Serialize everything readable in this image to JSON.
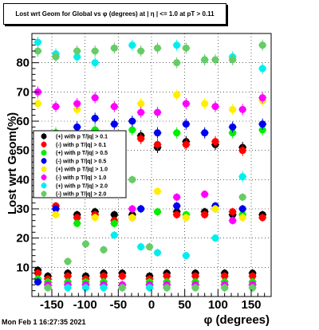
{
  "timestamp": "Mon Feb  1 16:27:35 2021",
  "chart_data": {
    "type": "scatter",
    "title": "Lost wrt Geom for Global vs φ (degrees) at | η | <= 1.0 at pT > 0.11",
    "xlabel": "φ (degrees)",
    "ylabel": "Lost wrt Geom(%)",
    "xlim": [
      -180,
      180
    ],
    "ylim": [
      0,
      90
    ],
    "xticks": [
      -150,
      -100,
      -50,
      0,
      50,
      100,
      150
    ],
    "yticks": [
      10,
      20,
      30,
      40,
      50,
      60,
      70,
      80
    ],
    "grid": true,
    "legend_position": "center-left",
    "series": [
      {
        "name": "(+) with p T/|q| > 0.1",
        "color": "#000000",
        "x": [
          -171,
          -156,
          -144,
          -126,
          -112,
          -99,
          -85,
          -72,
          -56,
          -44,
          -29,
          -16,
          -3,
          9,
          23,
          38,
          52,
          66,
          80,
          96,
          110,
          122,
          137,
          152,
          167
        ],
        "y": [
          9,
          7,
          52,
          8,
          28,
          7,
          29,
          8,
          28,
          8,
          28,
          55,
          7,
          51,
          8,
          29,
          53,
          8,
          29,
          52,
          8,
          28,
          51,
          8,
          28
        ]
      },
      {
        "name": "(-) with p T/|q| > 0.1",
        "color": "#ff0000",
        "x": [
          -171,
          -156,
          -144,
          -126,
          -112,
          -99,
          -85,
          -72,
          -56,
          -44,
          -29,
          -16,
          -3,
          9,
          23,
          38,
          52,
          66,
          80,
          96,
          110,
          122,
          137,
          152,
          167
        ],
        "y": [
          8,
          6,
          31,
          7,
          27,
          6,
          28,
          7,
          26,
          7,
          27,
          54,
          6,
          52,
          7,
          28,
          52,
          7,
          28,
          53,
          7,
          29,
          50,
          7,
          27
        ]
      },
      {
        "name": "(+) with p T/|q| > 0.5",
        "color": "#00ee00",
        "x": [
          -171,
          -156,
          -144,
          -126,
          -112,
          -99,
          -85,
          -72,
          -56,
          -44,
          -29,
          -16,
          -3,
          9,
          23,
          38,
          52,
          66,
          80,
          96,
          110,
          122,
          137,
          152,
          167
        ],
        "y": [
          6,
          5,
          56,
          5,
          25,
          5,
          57,
          5,
          25,
          4,
          57,
          30,
          5,
          29,
          5,
          56,
          28,
          5,
          56,
          30,
          5,
          56,
          28,
          5,
          57
        ]
      },
      {
        "name": "(-) with p T/|q| > 0.5",
        "color": "#0000ee",
        "x": [
          -171,
          -156,
          -144,
          -126,
          -112,
          -99,
          -85,
          -72,
          -56,
          -44,
          -29,
          -16,
          -3,
          9,
          23,
          38,
          52,
          66,
          80,
          96,
          110,
          122,
          137,
          152,
          167
        ],
        "y": [
          5,
          4,
          30,
          4,
          58,
          4,
          61,
          4,
          59,
          4,
          60,
          30,
          4,
          56,
          4,
          31,
          59,
          4,
          56,
          31,
          4,
          58,
          30,
          4,
          59
        ]
      },
      {
        "name": "(+) with p T/|q| > 1.0",
        "color": "#ffee00",
        "x": [
          -171,
          -156,
          -144,
          -126,
          -112,
          -99,
          -85,
          -72,
          -56,
          -44,
          -29,
          -16,
          -3,
          9,
          23,
          38,
          52,
          66,
          80,
          96,
          110,
          122,
          137,
          152,
          167
        ],
        "y": [
          66,
          4,
          28,
          4,
          64,
          4,
          27,
          4,
          65,
          4,
          27,
          66,
          4,
          36,
          4,
          69,
          27,
          4,
          66,
          30,
          4,
          64,
          27,
          4,
          67
        ]
      },
      {
        "name": "(-) with p T/|q| > 1.0",
        "color": "#ff00ff",
        "x": [
          -171,
          -156,
          -144,
          -126,
          -112,
          -99,
          -85,
          -72,
          -56,
          -44,
          -29,
          -16,
          -3,
          9,
          23,
          38,
          52,
          66,
          80,
          96,
          110,
          122,
          137,
          152,
          167
        ],
        "y": [
          70,
          4,
          65,
          4,
          66,
          4,
          68,
          4,
          65,
          4,
          30,
          63,
          4,
          63,
          4,
          34,
          66,
          4,
          35,
          65,
          4,
          26,
          64,
          4,
          68
        ]
      },
      {
        "name": "(+) with p T/|q| > 2.0",
        "color": "#00eeee",
        "x": [
          -171,
          -156,
          -144,
          -126,
          -112,
          -99,
          -85,
          -72,
          -56,
          -44,
          -29,
          -16,
          -3,
          9,
          23,
          38,
          52,
          66,
          80,
          96,
          110,
          122,
          137,
          152,
          167
        ],
        "y": [
          87,
          3,
          83,
          3,
          82,
          3,
          80,
          3,
          21,
          3,
          86,
          17,
          3,
          15,
          3,
          86,
          14,
          3,
          81,
          20,
          3,
          82,
          41,
          3,
          78
        ]
      },
      {
        "name": "(-) with p T/|q| > 2.0",
        "color": "#66cc66",
        "x": [
          -171,
          -156,
          -144,
          -126,
          -112,
          -99,
          -85,
          -72,
          -56,
          -44,
          -29,
          -16,
          -3,
          9,
          23,
          38,
          52,
          66,
          80,
          96,
          110,
          122,
          137,
          152,
          167
        ],
        "y": [
          84,
          3,
          82,
          12,
          84,
          18,
          84,
          16,
          85,
          3,
          40,
          84,
          17,
          85,
          3,
          80,
          85,
          3,
          81,
          81,
          3,
          81,
          34,
          3,
          86
        ]
      }
    ]
  }
}
